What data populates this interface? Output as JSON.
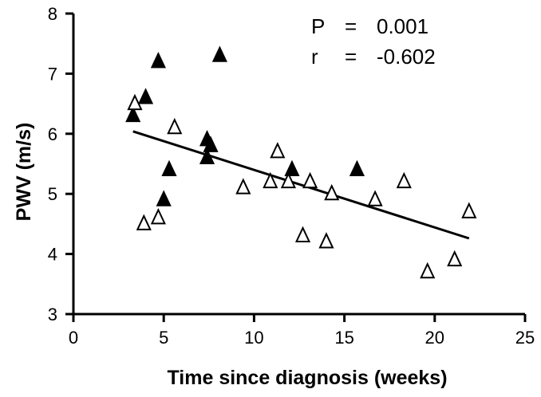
{
  "chart_data": {
    "type": "scatter",
    "xlabel": "Time since diagnosis (weeks)",
    "ylabel": "PWV (m/s)",
    "xlim": [
      0,
      25
    ],
    "ylim": [
      3,
      8
    ],
    "x_ticks": [
      "0",
      "5",
      "10",
      "15",
      "20",
      "25"
    ],
    "y_ticks": [
      "3",
      "4",
      "5",
      "6",
      "7",
      "8"
    ],
    "grid": false,
    "legend": "none",
    "annotations": {
      "p_label": "P",
      "p_eq": "=",
      "p_value": "0.001",
      "r_label": "r",
      "r_eq": "=",
      "r_value": "-0.602"
    },
    "series": [
      {
        "marker": "filled-triangle",
        "color": "#000000",
        "points": [
          {
            "x": 3.3,
            "y": 6.3
          },
          {
            "x": 4.0,
            "y": 6.6
          },
          {
            "x": 4.7,
            "y": 7.2
          },
          {
            "x": 5.0,
            "y": 4.9
          },
          {
            "x": 5.3,
            "y": 5.4
          },
          {
            "x": 7.4,
            "y": 5.6
          },
          {
            "x": 7.4,
            "y": 5.9
          },
          {
            "x": 7.6,
            "y": 5.8
          },
          {
            "x": 8.1,
            "y": 7.3
          },
          {
            "x": 12.1,
            "y": 5.4
          },
          {
            "x": 15.7,
            "y": 5.4
          }
        ]
      },
      {
        "marker": "open-triangle",
        "color": "#000000",
        "points": [
          {
            "x": 3.4,
            "y": 6.5
          },
          {
            "x": 3.9,
            "y": 4.5
          },
          {
            "x": 4.7,
            "y": 4.6
          },
          {
            "x": 5.6,
            "y": 6.1
          },
          {
            "x": 9.4,
            "y": 5.1
          },
          {
            "x": 10.9,
            "y": 5.2
          },
          {
            "x": 11.3,
            "y": 5.7
          },
          {
            "x": 11.9,
            "y": 5.2
          },
          {
            "x": 12.7,
            "y": 4.3
          },
          {
            "x": 13.1,
            "y": 5.2
          },
          {
            "x": 14.0,
            "y": 4.2
          },
          {
            "x": 14.3,
            "y": 5.0
          },
          {
            "x": 16.7,
            "y": 4.9
          },
          {
            "x": 18.3,
            "y": 5.2
          },
          {
            "x": 19.6,
            "y": 3.7
          },
          {
            "x": 21.1,
            "y": 3.9
          },
          {
            "x": 21.9,
            "y": 4.7
          }
        ]
      }
    ],
    "regression_line": {
      "x": [
        3.3,
        21.9
      ],
      "y": [
        6.04,
        4.26
      ]
    }
  }
}
